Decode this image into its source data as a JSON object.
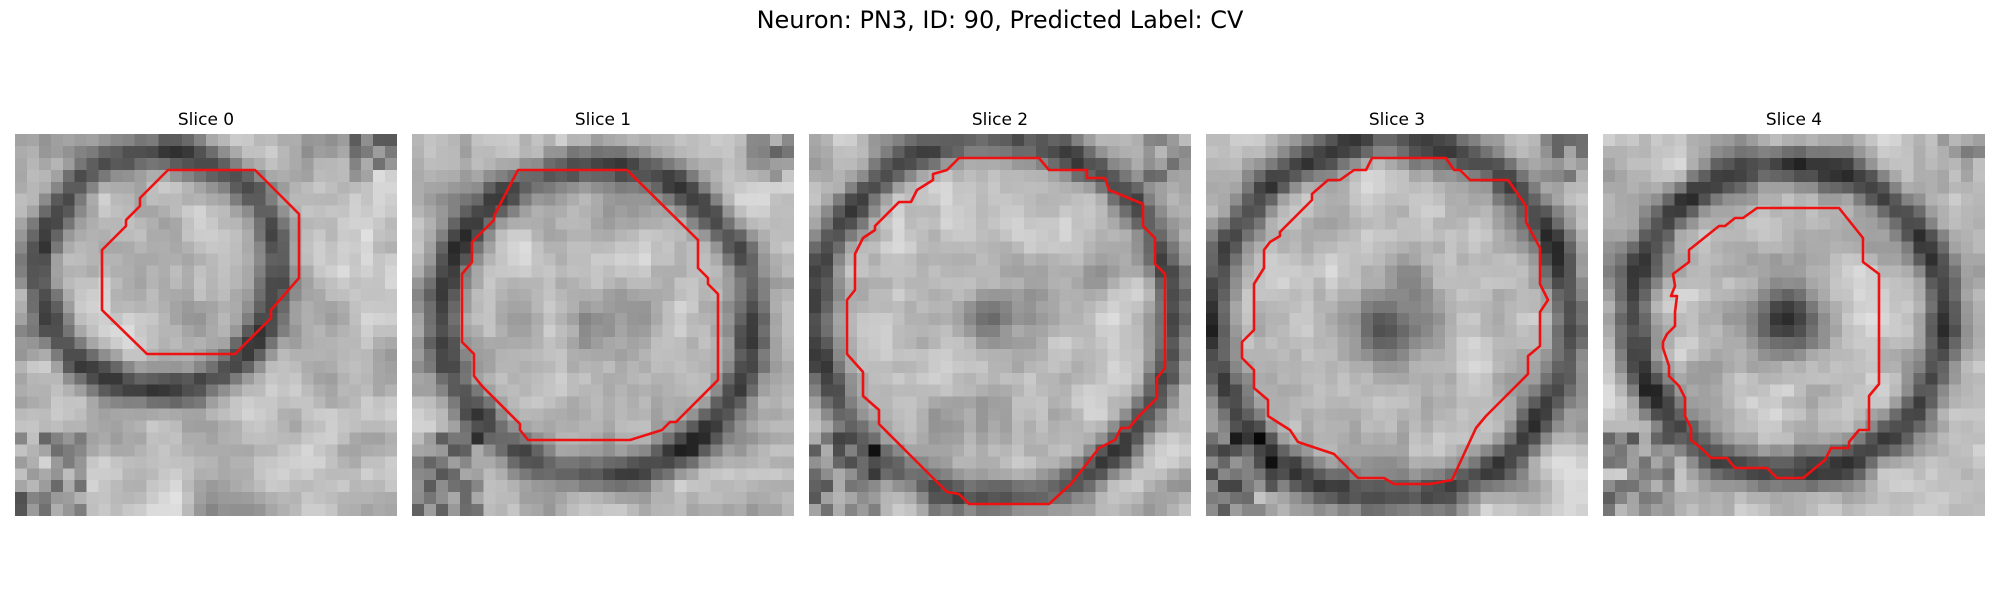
{
  "title": "Neuron: PN3, ID: 90, Predicted Label: CV",
  "contour_color": "#ee1111",
  "image_colormap": "gray",
  "panels": [
    {
      "label": "Slice 0"
    },
    {
      "label": "Slice 1"
    },
    {
      "label": "Slice 2"
    },
    {
      "label": "Slice 3"
    },
    {
      "label": "Slice 4"
    }
  ]
}
